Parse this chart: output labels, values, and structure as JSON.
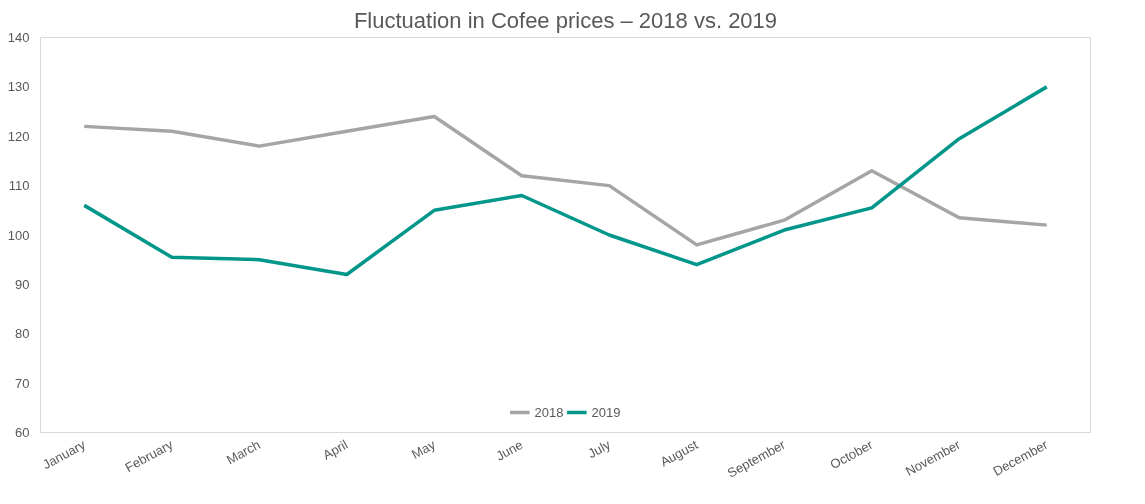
{
  "chart_data": {
    "type": "line",
    "title": "Fluctuation in Cofee prices – 2018 vs. 2019",
    "categories": [
      "January",
      "February",
      "March",
      "April",
      "May",
      "June",
      "July",
      "August",
      "September",
      "October",
      "November",
      "December"
    ],
    "series": [
      {
        "name": "2018",
        "color": "#a5a5a5",
        "values": [
          122,
          121,
          118,
          121,
          124,
          112,
          110,
          98,
          103,
          113,
          103.5,
          102
        ]
      },
      {
        "name": "2019",
        "color": "#00968a",
        "values": [
          106,
          95.5,
          95,
          92,
          105,
          108,
          100,
          94,
          101,
          105.5,
          119.5,
          130
        ]
      }
    ],
    "ylim": [
      60,
      140
    ],
    "yticks": [
      60,
      70,
      80,
      90,
      100,
      110,
      120,
      130,
      140
    ],
    "grid": false,
    "legend": "bottom",
    "marker": "none",
    "line_style": "solid"
  }
}
